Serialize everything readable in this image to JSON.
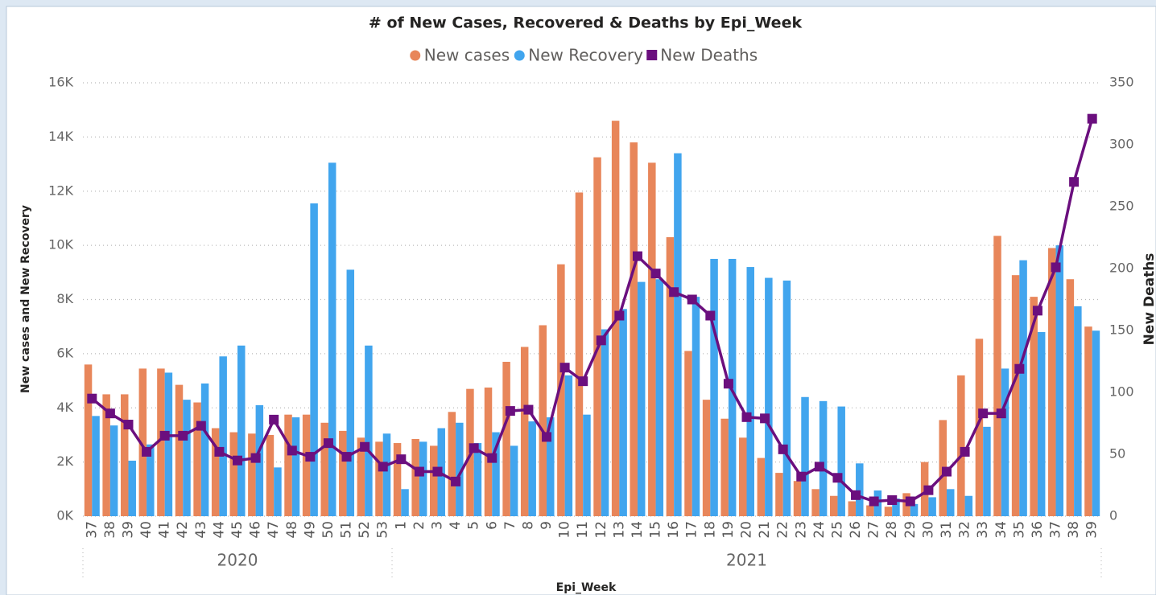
{
  "chart_data": {
    "type": "combo",
    "title": "# of New Cases, Recovered & Deaths by Epi_Week",
    "x_label": "Epi_Week",
    "y_label": "New cases and New Recovery",
    "y2_label": "New Deaths",
    "groups": [
      {
        "label": "2020",
        "categories": [
          "37",
          "38",
          "39",
          "40",
          "41",
          "42",
          "43",
          "44",
          "45",
          "46",
          "47",
          "48",
          "49",
          "50",
          "51",
          "52",
          "53"
        ]
      },
      {
        "label": "2021",
        "categories": [
          "1",
          "2",
          "3",
          "4",
          "5",
          "6",
          "7",
          "8",
          "9",
          "10",
          "11",
          "12",
          "13",
          "14",
          "15",
          "16",
          "17",
          "18",
          "19",
          "20",
          "21",
          "22",
          "23",
          "24",
          "25",
          "26",
          "27",
          "28",
          "29",
          "30",
          "31",
          "32",
          "33",
          "34",
          "35",
          "36",
          "37",
          "38",
          "39"
        ]
      }
    ],
    "series": [
      {
        "name": "New cases",
        "kind": "bar",
        "color": "#e8865a",
        "values": [
          5600,
          4500,
          4500,
          5450,
          5450,
          4850,
          4200,
          3250,
          3100,
          3050,
          3000,
          3750,
          3750,
          3450,
          3150,
          2900,
          2750,
          2700,
          2850,
          2600,
          3850,
          4700,
          4750,
          5700,
          6250,
          7050,
          9300,
          11950,
          13250,
          14600,
          13800,
          13050,
          10300,
          6100,
          4300,
          3600,
          2900,
          2150,
          1600,
          1300,
          1000,
          750,
          550,
          400,
          350,
          850,
          2000,
          3550,
          5200,
          6550,
          10350,
          8900,
          8100,
          9900,
          8750,
          7000
        ]
      },
      {
        "name": "New Recovery",
        "kind": "bar",
        "color": "#41a5ee",
        "values": [
          3700,
          3350,
          2050,
          2650,
          5300,
          4300,
          4900,
          5900,
          6300,
          4100,
          1800,
          3650,
          11550,
          13050,
          9100,
          6300,
          3050,
          1000,
          2750,
          3250,
          3450,
          2700,
          3100,
          2600,
          3500,
          3650,
          5200,
          3750,
          6900,
          7650,
          8650,
          8750,
          13400,
          8100,
          9500,
          9500,
          9200,
          8800,
          8700,
          4400,
          4250,
          4050,
          1950,
          950,
          650,
          450,
          700,
          1000,
          750,
          3300,
          5450,
          9450,
          6800,
          10000,
          7750,
          6850
        ]
      },
      {
        "name": "New Deaths",
        "kind": "line",
        "axis": "y2",
        "color": "#6b0f7e",
        "values": [
          95,
          83,
          74,
          52,
          65,
          65,
          73,
          52,
          45,
          47,
          78,
          53,
          48,
          59,
          48,
          56,
          40,
          46,
          36,
          36,
          28,
          55,
          47,
          85,
          86,
          64,
          120,
          109,
          142,
          162,
          210,
          196,
          181,
          175,
          162,
          107,
          80,
          79,
          54,
          32,
          40,
          31,
          17,
          12,
          13,
          12,
          21,
          36,
          52,
          83,
          83,
          119,
          166,
          201,
          270,
          321
        ]
      }
    ],
    "ylim": [
      0,
      16000
    ],
    "yticks": [
      {
        "value": 0,
        "label": "0K"
      },
      {
        "value": 2000,
        "label": "2K"
      },
      {
        "value": 4000,
        "label": "4K"
      },
      {
        "value": 6000,
        "label": "6K"
      },
      {
        "value": 8000,
        "label": "8K"
      },
      {
        "value": 10000,
        "label": "10K"
      },
      {
        "value": 12000,
        "label": "12K"
      },
      {
        "value": 14000,
        "label": "14K"
      },
      {
        "value": 16000,
        "label": "16K"
      }
    ],
    "y2lim": [
      0,
      350
    ],
    "y2ticks": [
      0,
      50,
      100,
      150,
      200,
      250,
      300,
      350
    ],
    "grid": true,
    "legend": "top"
  }
}
